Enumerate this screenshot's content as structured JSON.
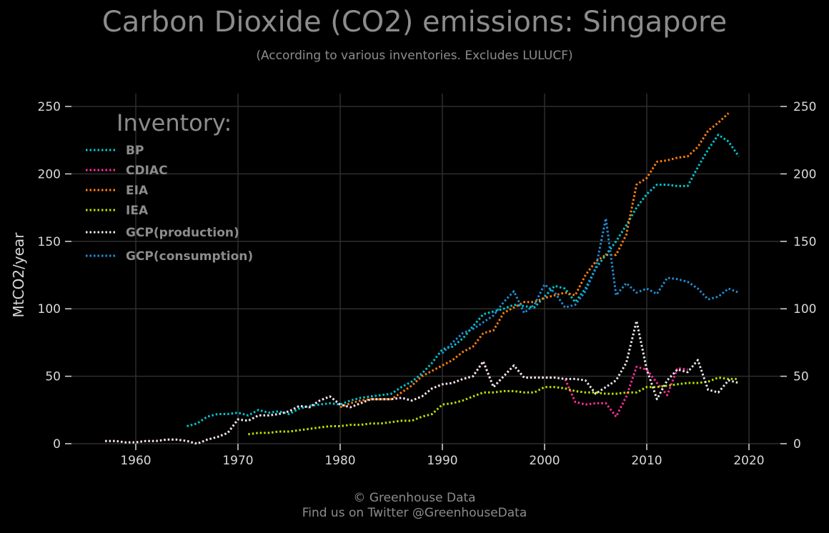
{
  "title": "Carbon Dioxide (CO2) emissions: Singapore",
  "subtitle": "(According to various inventories. Excludes LULUCF)",
  "footer": {
    "line1": "© Greenhouse Data",
    "line2": "Find us on Twitter @GreenhouseData"
  },
  "chart_data": {
    "type": "line",
    "title": "Carbon Dioxide (CO2) emissions: Singapore",
    "subtitle": "(According to various inventories. Excludes LULUCF)",
    "xlabel": "",
    "ylabel": "MtCO2/year",
    "xlim": [
      1952,
      2023
    ],
    "ylim": [
      0,
      250
    ],
    "x_ticks": [
      1960,
      1970,
      1980,
      1990,
      2000,
      2010,
      2020
    ],
    "y_ticks": [
      0,
      50,
      100,
      150,
      200,
      250
    ],
    "grid": true,
    "background": "#000000",
    "legend": {
      "title": "Inventory:",
      "position": "top-left"
    },
    "series": [
      {
        "name": "BP",
        "color": "#00c8d2",
        "x": [
          1965,
          1966,
          1967,
          1968,
          1969,
          1970,
          1971,
          1972,
          1973,
          1974,
          1975,
          1976,
          1977,
          1978,
          1979,
          1980,
          1981,
          1982,
          1983,
          1984,
          1985,
          1986,
          1987,
          1988,
          1989,
          1990,
          1991,
          1992,
          1993,
          1994,
          1995,
          1996,
          1997,
          1998,
          1999,
          2000,
          2001,
          2002,
          2003,
          2004,
          2005,
          2006,
          2007,
          2008,
          2009,
          2010,
          2011,
          2012,
          2013,
          2014,
          2015,
          2016,
          2017,
          2018,
          2019
        ],
        "y": [
          13,
          15,
          20,
          22,
          22,
          23,
          21,
          25,
          23,
          24,
          22,
          26,
          28,
          29,
          30,
          29,
          32,
          34,
          35,
          36,
          37,
          42,
          46,
          52,
          60,
          70,
          72,
          78,
          87,
          96,
          98,
          100,
          103,
          102,
          101,
          109,
          117,
          115,
          105,
          115,
          130,
          140,
          150,
          162,
          175,
          185,
          192,
          192,
          191,
          191,
          205,
          218,
          229,
          224,
          213
        ]
      },
      {
        "name": "CDIAC",
        "color": "#ff2d9b",
        "x": [
          1957,
          1958,
          1959,
          1960,
          1961,
          1962,
          1963,
          1964,
          1965,
          1966,
          1967,
          1968,
          1969,
          1970,
          1971,
          1972,
          1973,
          1974,
          1975,
          1976,
          1977,
          1978,
          1979,
          1980,
          1981,
          1982,
          1983,
          1984,
          1985,
          1986,
          1987,
          1988,
          1989,
          1990,
          1991,
          1992,
          1993,
          1994,
          1995,
          1996,
          1997,
          1998,
          1999,
          2000,
          2001,
          2002,
          2003,
          2004,
          2005,
          2006,
          2007,
          2008,
          2009,
          2010,
          2011,
          2012,
          2013,
          2014
        ],
        "y": [
          2,
          2,
          1,
          1,
          2,
          2,
          3,
          3,
          2,
          0,
          3,
          5,
          8,
          18,
          17,
          21,
          21,
          22,
          24,
          28,
          27,
          32,
          35,
          29,
          27,
          30,
          33,
          33,
          33,
          34,
          32,
          35,
          41,
          44,
          45,
          48,
          50,
          61,
          42,
          50,
          58,
          49,
          49,
          49,
          49,
          48,
          31,
          29,
          30,
          30,
          20,
          35,
          57,
          55,
          45,
          36,
          56,
          55
        ]
      },
      {
        "name": "EIA",
        "color": "#ff7f0e",
        "x": [
          1980,
          1981,
          1982,
          1983,
          1984,
          1985,
          1986,
          1987,
          1988,
          1989,
          1990,
          1991,
          1992,
          1993,
          1994,
          1995,
          1996,
          1997,
          1998,
          1999,
          2000,
          2001,
          2002,
          2003,
          2004,
          2005,
          2006,
          2007,
          2008,
          2009,
          2010,
          2011,
          2012,
          2013,
          2014,
          2015,
          2016,
          2017,
          2018
        ],
        "y": [
          27,
          30,
          32,
          33,
          33,
          33,
          38,
          43,
          50,
          54,
          58,
          62,
          68,
          72,
          82,
          84,
          97,
          101,
          105,
          105,
          108,
          110,
          112,
          110,
          125,
          135,
          140,
          140,
          155,
          192,
          197,
          209,
          210,
          212,
          213,
          220,
          232,
          238,
          245
        ]
      },
      {
        "name": "IEA",
        "color": "#b8e000",
        "x": [
          1971,
          1972,
          1973,
          1974,
          1975,
          1976,
          1977,
          1978,
          1979,
          1980,
          1981,
          1982,
          1983,
          1984,
          1985,
          1986,
          1987,
          1988,
          1989,
          1990,
          1991,
          1992,
          1993,
          1994,
          1995,
          1996,
          1997,
          1998,
          1999,
          2000,
          2001,
          2002,
          2003,
          2004,
          2005,
          2006,
          2007,
          2008,
          2009,
          2010,
          2011,
          2012,
          2013,
          2014,
          2015,
          2016,
          2017,
          2018,
          2019
        ],
        "y": [
          7,
          8,
          8,
          9,
          9,
          10,
          11,
          12,
          13,
          13,
          14,
          14,
          15,
          15,
          16,
          17,
          17,
          20,
          22,
          29,
          30,
          32,
          35,
          38,
          38,
          39,
          39,
          38,
          38,
          42,
          42,
          41,
          39,
          38,
          38,
          37,
          37,
          38,
          38,
          42,
          42,
          43,
          44,
          45,
          45,
          46,
          49,
          48,
          48
        ]
      },
      {
        "name": "GCP(production)",
        "color": "#e8e8e8",
        "x": [
          1957,
          1958,
          1959,
          1960,
          1961,
          1962,
          1963,
          1964,
          1965,
          1966,
          1967,
          1968,
          1969,
          1970,
          1971,
          1972,
          1973,
          1974,
          1975,
          1976,
          1977,
          1978,
          1979,
          1980,
          1981,
          1982,
          1983,
          1984,
          1985,
          1986,
          1987,
          1988,
          1989,
          1990,
          1991,
          1992,
          1993,
          1994,
          1995,
          1996,
          1997,
          1998,
          1999,
          2000,
          2001,
          2002,
          2003,
          2004,
          2005,
          2006,
          2007,
          2008,
          2009,
          2010,
          2011,
          2012,
          2013,
          2014,
          2015,
          2016,
          2017,
          2018,
          2019
        ],
        "y": [
          2,
          2,
          1,
          1,
          2,
          2,
          3,
          3,
          2,
          0,
          3,
          5,
          8,
          18,
          17,
          21,
          21,
          22,
          24,
          28,
          27,
          32,
          35,
          29,
          27,
          30,
          33,
          33,
          33,
          34,
          32,
          35,
          41,
          44,
          45,
          48,
          50,
          61,
          42,
          50,
          58,
          49,
          49,
          49,
          49,
          48,
          48,
          47,
          37,
          42,
          47,
          60,
          91,
          55,
          33,
          47,
          55,
          53,
          62,
          40,
          38,
          47,
          45
        ]
      },
      {
        "name": "GCP(consumption)",
        "color": "#1e90d6",
        "x": [
          1990,
          1991,
          1992,
          1993,
          1994,
          1995,
          1996,
          1997,
          1998,
          1999,
          2000,
          2001,
          2002,
          2003,
          2004,
          2005,
          2006,
          2007,
          2008,
          2009,
          2010,
          2011,
          2012,
          2013,
          2014,
          2015,
          2016,
          2017,
          2018,
          2019
        ],
        "y": [
          67,
          75,
          82,
          85,
          90,
          95,
          105,
          113,
          97,
          103,
          118,
          112,
          101,
          103,
          113,
          130,
          167,
          110,
          119,
          112,
          115,
          111,
          123,
          122,
          120,
          115,
          107,
          109,
          115,
          112
        ]
      }
    ]
  }
}
